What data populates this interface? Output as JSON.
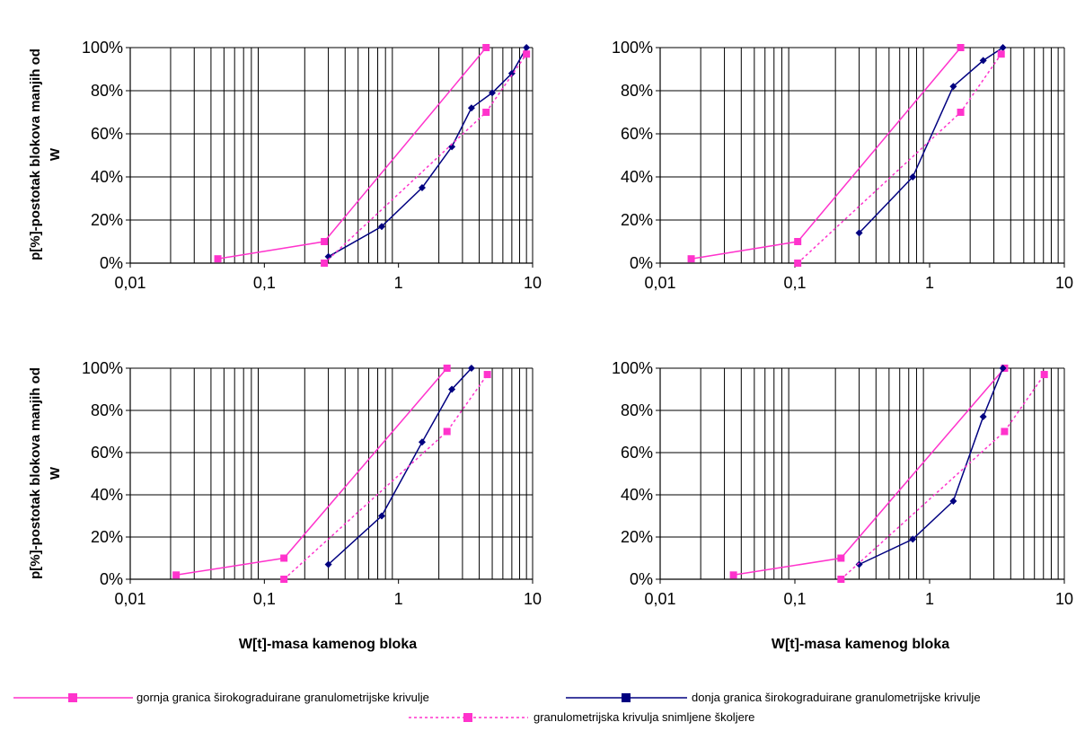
{
  "figure": {
    "ylabel_line1": "p[%]-postotak blokova manjih od",
    "ylabel_line2": "W",
    "xlabel": "W[t]-masa kamenog bloka"
  },
  "legend": [
    {
      "label": "gornja granica širokograduirane granulometrijske krivulje",
      "color": "#ff33cc",
      "dash": "solid",
      "marker": "square"
    },
    {
      "label": "donja granica širokograduirane granulometrijske krivulje",
      "color": "#000080",
      "dash": "solid",
      "marker": "square"
    },
    {
      "label": "granulometrijska krivulja snimljene školjere",
      "color": "#ff33cc",
      "dash": "dotted",
      "marker": "square"
    }
  ],
  "chart_data": [
    {
      "type": "line",
      "xscale": "log",
      "xlim": [
        0.01,
        10
      ],
      "ylim": [
        0,
        100
      ],
      "xticks": [
        "0,01",
        "0,1",
        "1",
        "10"
      ],
      "yticks": [
        "0%",
        "20%",
        "40%",
        "60%",
        "80%",
        "100%"
      ],
      "grid": true,
      "series": [
        {
          "name": "gornja granica širokograduirane granulometrijske krivulje",
          "color": "#ff33cc",
          "dash": "solid",
          "marker": "square",
          "x": [
            0.045,
            0.28,
            4.5
          ],
          "y": [
            2,
            10,
            100
          ]
        },
        {
          "name": "donja granica širokograduirane granulometrijske krivulje",
          "color": "#000080",
          "dash": "solid",
          "marker": "diamond",
          "x": [
            0.3,
            0.75,
            1.5,
            2.5,
            3.5,
            5,
            7,
            9
          ],
          "y": [
            3,
            17,
            35,
            54,
            72,
            79,
            88,
            100
          ]
        },
        {
          "name": "granulometrijska krivulja snimljene školjere",
          "color": "#ff33cc",
          "dash": "dotted",
          "marker": "square",
          "x": [
            0.28,
            4.5,
            9
          ],
          "y": [
            0,
            70,
            97
          ]
        }
      ]
    },
    {
      "type": "line",
      "xscale": "log",
      "xlim": [
        0.01,
        10
      ],
      "ylim": [
        0,
        100
      ],
      "xticks": [
        "0,01",
        "0,1",
        "1",
        "10"
      ],
      "yticks": [
        "0%",
        "20%",
        "40%",
        "60%",
        "80%",
        "100%"
      ],
      "grid": true,
      "series": [
        {
          "name": "gornja granica širokograduirane granulometrijske krivulje",
          "color": "#ff33cc",
          "dash": "solid",
          "marker": "square",
          "x": [
            0.017,
            0.105,
            1.7
          ],
          "y": [
            2,
            10,
            100
          ]
        },
        {
          "name": "donja granica širokograduirane granulometrijske krivulje",
          "color": "#000080",
          "dash": "solid",
          "marker": "diamond",
          "x": [
            0.3,
            0.75,
            1.5,
            2.5,
            3.5
          ],
          "y": [
            14,
            40,
            82,
            94,
            100
          ]
        },
        {
          "name": "granulometrijska krivulja snimljene školjere",
          "color": "#ff33cc",
          "dash": "dotted",
          "marker": "square",
          "x": [
            0.105,
            1.7,
            3.4
          ],
          "y": [
            0,
            70,
            97
          ]
        }
      ]
    },
    {
      "type": "line",
      "xscale": "log",
      "xlim": [
        0.01,
        10
      ],
      "ylim": [
        0,
        100
      ],
      "xticks": [
        "0,01",
        "0,1",
        "1",
        "10"
      ],
      "yticks": [
        "0%",
        "20%",
        "40%",
        "60%",
        "80%",
        "100%"
      ],
      "grid": true,
      "series": [
        {
          "name": "gornja granica širokograduirane granulometrijske krivulje",
          "color": "#ff33cc",
          "dash": "solid",
          "marker": "square",
          "x": [
            0.022,
            0.14,
            2.3
          ],
          "y": [
            2,
            10,
            100
          ]
        },
        {
          "name": "donja granica širokograduirane granulometrijske krivulje",
          "color": "#000080",
          "dash": "solid",
          "marker": "diamond",
          "x": [
            0.3,
            0.75,
            1.5,
            2.5,
            3.5
          ],
          "y": [
            7,
            30,
            65,
            90,
            100
          ]
        },
        {
          "name": "granulometrijska krivulja snimljene školjere",
          "color": "#ff33cc",
          "dash": "dotted",
          "marker": "square",
          "x": [
            0.14,
            2.3,
            4.6
          ],
          "y": [
            0,
            70,
            97
          ]
        }
      ]
    },
    {
      "type": "line",
      "xscale": "log",
      "xlim": [
        0.01,
        10
      ],
      "ylim": [
        0,
        100
      ],
      "xticks": [
        "0,01",
        "0,1",
        "1",
        "10"
      ],
      "yticks": [
        "0%",
        "20%",
        "40%",
        "60%",
        "80%",
        "100%"
      ],
      "grid": true,
      "series": [
        {
          "name": "gornja granica širokograduirane granulometrijske krivulje",
          "color": "#ff33cc",
          "dash": "solid",
          "marker": "square",
          "x": [
            0.035,
            0.22,
            3.6
          ],
          "y": [
            2,
            10,
            100
          ]
        },
        {
          "name": "donja granica širokograduirane granulometrijske krivulje",
          "color": "#000080",
          "dash": "solid",
          "marker": "diamond",
          "x": [
            0.3,
            0.75,
            1.5,
            2.5,
            3.5
          ],
          "y": [
            7,
            19,
            37,
            77,
            100
          ]
        },
        {
          "name": "granulometrijska krivulja snimljene školjere",
          "color": "#ff33cc",
          "dash": "dotted",
          "marker": "square",
          "x": [
            0.22,
            3.6,
            7.1
          ],
          "y": [
            0,
            70,
            97
          ]
        }
      ]
    }
  ]
}
